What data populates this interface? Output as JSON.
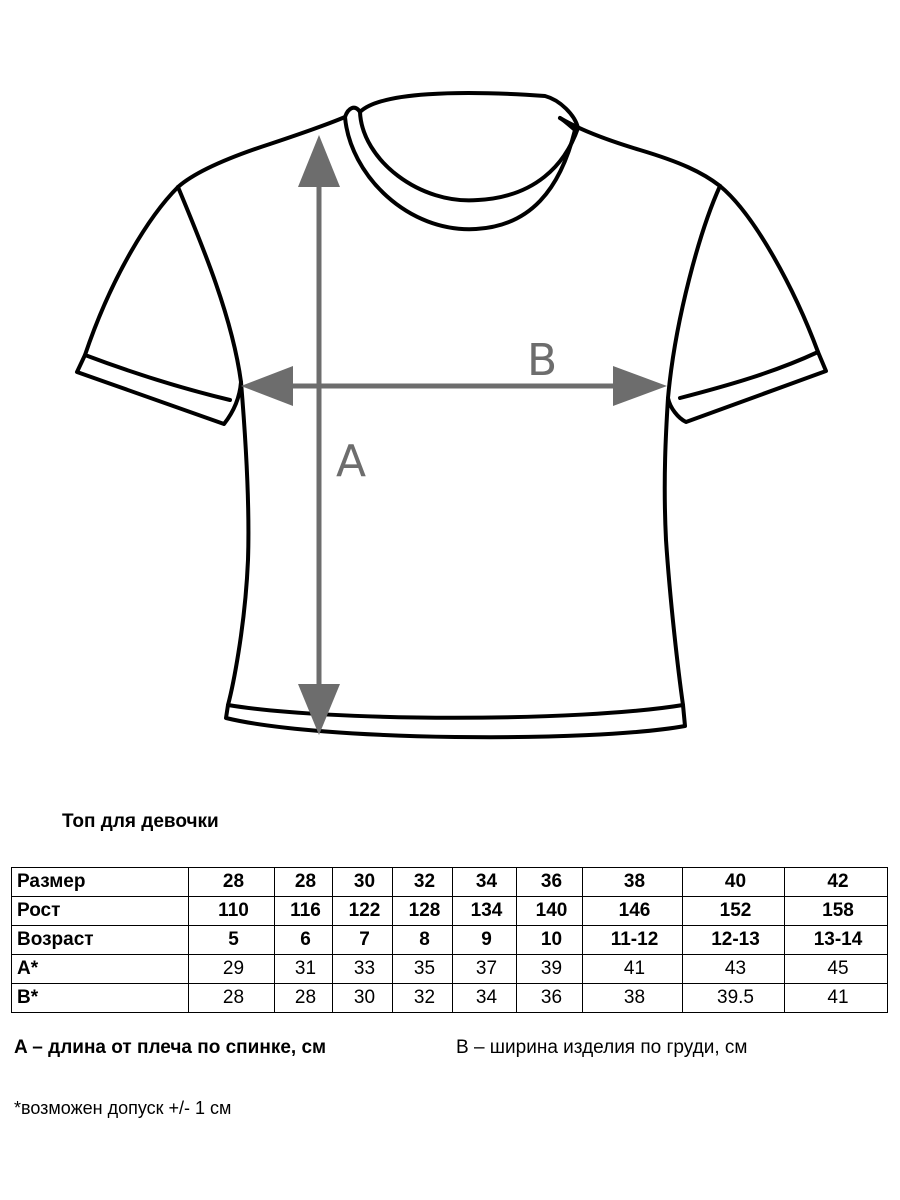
{
  "figure": {
    "label_a": "A",
    "label_b": "B",
    "arrow_color": "#6d6d6d",
    "outline_color": "#000000"
  },
  "title": "Топ для девочки",
  "table": {
    "rows": [
      {
        "label": "Размер",
        "values": [
          "28",
          "28",
          "30",
          "32",
          "34",
          "36",
          "38",
          "40",
          "42"
        ]
      },
      {
        "label": "Рост",
        "values": [
          "110",
          "116",
          "122",
          "128",
          "134",
          "140",
          "146",
          "152",
          "158"
        ]
      },
      {
        "label": "Возраст",
        "values": [
          "5",
          "6",
          "7",
          "8",
          "9",
          "10",
          "11-12",
          "12-13",
          "13-14"
        ]
      },
      {
        "label": "A*",
        "values": [
          "29",
          "31",
          "33",
          "35",
          "37",
          "39",
          "41",
          "43",
          "45"
        ]
      },
      {
        "label": "B*",
        "values": [
          "28",
          "28",
          "30",
          "32",
          "34",
          "36",
          "38",
          "39.5",
          "41"
        ]
      }
    ]
  },
  "legend": {
    "a": "A – длина от плеча по спинке, см",
    "b": "B – ширина изделия по груди, см"
  },
  "note": "*возможен допуск +/- 1 см"
}
